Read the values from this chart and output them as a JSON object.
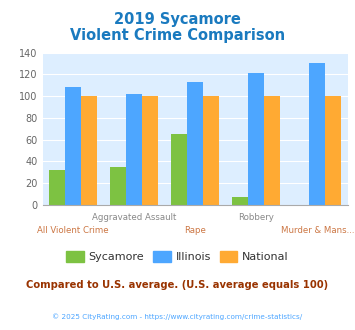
{
  "title_line1": "2019 Sycamore",
  "title_line2": "Violent Crime Comparison",
  "title_color": "#1a7abf",
  "sycamore": [
    32,
    35,
    65,
    7,
    0
  ],
  "illinois": [
    108,
    102,
    113,
    121,
    131
  ],
  "national": [
    100,
    100,
    100,
    100,
    100
  ],
  "color_sycamore": "#7dc242",
  "color_illinois": "#4da6ff",
  "color_national": "#ffaa33",
  "ylim": [
    0,
    140
  ],
  "yticks": [
    0,
    20,
    40,
    60,
    80,
    100,
    120,
    140
  ],
  "bg_color": "#ddeeff",
  "legend_labels": [
    "Sycamore",
    "Illinois",
    "National"
  ],
  "footer_text": "Compared to U.S. average. (U.S. average equals 100)",
  "footer_color": "#993300",
  "copyright_text": "© 2025 CityRating.com - https://www.cityrating.com/crime-statistics/",
  "copyright_color": "#4da6ff"
}
